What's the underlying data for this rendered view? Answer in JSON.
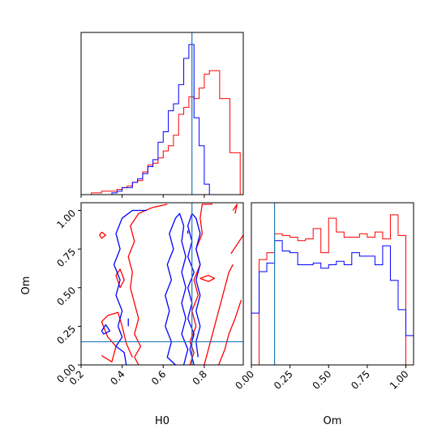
{
  "chart_data": {
    "type": "corner",
    "parameters": [
      "H0",
      "Om"
    ],
    "xlabel": "H0",
    "ylabel": "Om",
    "ranges": {
      "H0": [
        0.2,
        0.99
      ],
      "Om": [
        0.0,
        1.05
      ]
    },
    "truths": {
      "H0": 0.74,
      "Om": 0.15
    },
    "truth_color": "#1f77b4",
    "series_colors": [
      "#ff0000",
      "#0000ff"
    ],
    "ticks": {
      "H0": [
        "0.2",
        "0.4",
        "0.6",
        "0.8"
      ],
      "Om": [
        "0.00",
        "0.25",
        "0.50",
        "0.75",
        "1.00"
      ]
    },
    "hist_H0": {
      "bin_edges": [
        0.2,
        0.225,
        0.25,
        0.275,
        0.3,
        0.325,
        0.35,
        0.375,
        0.4,
        0.425,
        0.45,
        0.475,
        0.5,
        0.525,
        0.55,
        0.575,
        0.6,
        0.625,
        0.65,
        0.675,
        0.7,
        0.725,
        0.75,
        0.775,
        0.8,
        0.825,
        0.85,
        0.875,
        0.9,
        0.925,
        0.95,
        0.975,
        1.0
      ],
      "series": [
        {
          "values": [
            0,
            0,
            1,
            1,
            2,
            2,
            2,
            3,
            4,
            5,
            7,
            8,
            13,
            17,
            18,
            21,
            25,
            28,
            34,
            46,
            50,
            56,
            55,
            61,
            69,
            71,
            71,
            55,
            55,
            24,
            24,
            0
          ]
        },
        {
          "values": [
            0,
            0,
            0,
            0,
            0,
            0,
            1,
            2,
            4,
            4,
            7,
            9,
            12,
            16,
            20,
            30,
            36,
            48,
            52,
            63,
            78,
            86,
            44,
            28,
            6,
            0,
            0,
            0,
            0,
            0,
            0,
            0
          ]
        }
      ]
    },
    "hist_Om": {
      "bin_edges": [
        0.0,
        0.05,
        0.1,
        0.15,
        0.2,
        0.25,
        0.3,
        0.35,
        0.4,
        0.45,
        0.5,
        0.55,
        0.6,
        0.65,
        0.7,
        0.75,
        0.8,
        0.85,
        0.9,
        0.95,
        1.0,
        1.05
      ],
      "series": [
        {
          "values": [
            0,
            61,
            65,
            76,
            75,
            74,
            72,
            73,
            79,
            65,
            85,
            77,
            74,
            74,
            76,
            74,
            77,
            73,
            87,
            75,
            0
          ]
        },
        {
          "values": [
            30,
            54,
            59,
            72,
            66,
            65,
            58,
            58,
            59,
            56,
            58,
            60,
            58,
            65,
            63,
            63,
            58,
            69,
            49,
            32,
            17
          ]
        }
      ]
    },
    "contours": [
      {
        "name": "",
        "color": "#ff0000",
        "paths": [
          [
            [
              0.48,
              0.0
            ],
            [
              0.46,
              0.05
            ],
            [
              0.49,
              0.12
            ],
            [
              0.46,
              0.2
            ],
            [
              0.48,
              0.3
            ],
            [
              0.46,
              0.4
            ],
            [
              0.44,
              0.5
            ],
            [
              0.45,
              0.6
            ],
            [
              0.43,
              0.7
            ],
            [
              0.46,
              0.8
            ],
            [
              0.44,
              0.9
            ],
            [
              0.48,
              0.98
            ],
            [
              0.55,
              1.02
            ],
            [
              0.62,
              1.04
            ]
          ],
          [
            [
              0.3,
              0.06
            ],
            [
              0.35,
              0.02
            ],
            [
              0.37,
              0.12
            ],
            [
              0.33,
              0.18
            ],
            [
              0.3,
              0.28
            ],
            [
              0.33,
              0.32
            ],
            [
              0.38,
              0.34
            ],
            [
              0.4,
              0.25
            ],
            [
              0.42,
              0.14
            ],
            [
              0.45,
              0.05
            ]
          ],
          [
            [
              0.39,
              0.5
            ],
            [
              0.41,
              0.55
            ],
            [
              0.39,
              0.62
            ],
            [
              0.37,
              0.58
            ],
            [
              0.39,
              0.5
            ]
          ],
          [
            [
              0.3,
              0.86
            ],
            [
              0.32,
              0.84
            ],
            [
              0.3,
              0.82
            ],
            [
              0.29,
              0.84
            ],
            [
              0.3,
              0.86
            ]
          ],
          [
            [
              0.73,
              0.0
            ],
            [
              0.75,
              0.08
            ],
            [
              0.73,
              0.15
            ],
            [
              0.76,
              0.25
            ],
            [
              0.74,
              0.35
            ],
            [
              0.77,
              0.45
            ],
            [
              0.75,
              0.55
            ],
            [
              0.78,
              0.65
            ],
            [
              0.76,
              0.75
            ],
            [
              0.79,
              0.85
            ],
            [
              0.78,
              0.95
            ],
            [
              0.79,
              1.04
            ],
            [
              0.84,
              1.04
            ]
          ],
          [
            [
              0.8,
              0.0
            ],
            [
              0.82,
              0.1
            ],
            [
              0.84,
              0.2
            ],
            [
              0.86,
              0.3
            ],
            [
              0.88,
              0.4
            ],
            [
              0.9,
              0.5
            ],
            [
              0.92,
              0.6
            ],
            [
              0.94,
              0.65
            ]
          ],
          [
            [
              0.87,
              0.0
            ],
            [
              0.9,
              0.1
            ],
            [
              0.92,
              0.2
            ],
            [
              0.95,
              0.3
            ],
            [
              0.98,
              0.42
            ]
          ],
          [
            [
              0.78,
              0.56
            ],
            [
              0.82,
              0.58
            ],
            [
              0.85,
              0.56
            ],
            [
              0.82,
              0.54
            ],
            [
              0.78,
              0.56
            ]
          ],
          [
            [
              0.93,
              0.72
            ],
            [
              0.96,
              0.78
            ],
            [
              0.99,
              0.84
            ]
          ],
          [
            [
              0.94,
              1.0
            ],
            [
              0.96,
              1.04
            ],
            [
              0.95,
              0.98
            ]
          ]
        ]
      },
      {
        "name": "",
        "color": "#0000ff",
        "paths": [
          [
            [
              0.42,
              0.0
            ],
            [
              0.41,
              0.08
            ],
            [
              0.37,
              0.12
            ],
            [
              0.4,
              0.18
            ],
            [
              0.38,
              0.25
            ],
            [
              0.4,
              0.35
            ],
            [
              0.37,
              0.45
            ],
            [
              0.39,
              0.55
            ],
            [
              0.36,
              0.65
            ],
            [
              0.39,
              0.75
            ],
            [
              0.37,
              0.85
            ],
            [
              0.4,
              0.95
            ],
            [
              0.45,
              1.0
            ],
            [
              0.52,
              1.0
            ]
          ],
          [
            [
              0.3,
              0.22
            ],
            [
              0.32,
              0.26
            ],
            [
              0.34,
              0.22
            ],
            [
              0.31,
              0.2
            ],
            [
              0.3,
              0.22
            ]
          ],
          [
            [
              0.43,
              0.25
            ],
            [
              0.43,
              0.3
            ]
          ],
          [
            [
              0.66,
              0.0
            ],
            [
              0.62,
              0.05
            ],
            [
              0.64,
              0.15
            ],
            [
              0.61,
              0.25
            ],
            [
              0.63,
              0.35
            ],
            [
              0.61,
              0.45
            ],
            [
              0.64,
              0.55
            ],
            [
              0.62,
              0.65
            ],
            [
              0.65,
              0.75
            ],
            [
              0.63,
              0.85
            ],
            [
              0.66,
              0.95
            ],
            [
              0.68,
              0.98
            ],
            [
              0.7,
              0.9
            ],
            [
              0.69,
              0.8
            ],
            [
              0.71,
              0.7
            ],
            [
              0.69,
              0.6
            ],
            [
              0.71,
              0.5
            ],
            [
              0.69,
              0.4
            ],
            [
              0.71,
              0.3
            ],
            [
              0.69,
              0.2
            ],
            [
              0.72,
              0.1
            ],
            [
              0.7,
              0.0
            ]
          ],
          [
            [
              0.75,
              0.0
            ],
            [
              0.73,
              0.1
            ],
            [
              0.75,
              0.2
            ],
            [
              0.72,
              0.3
            ],
            [
              0.74,
              0.4
            ],
            [
              0.72,
              0.5
            ],
            [
              0.75,
              0.6
            ],
            [
              0.72,
              0.7
            ],
            [
              0.74,
              0.8
            ],
            [
              0.72,
              0.9
            ],
            [
              0.74,
              0.98
            ],
            [
              0.76,
              0.95
            ],
            [
              0.78,
              0.85
            ],
            [
              0.76,
              0.75
            ],
            [
              0.78,
              0.65
            ],
            [
              0.76,
              0.55
            ],
            [
              0.78,
              0.45
            ],
            [
              0.76,
              0.35
            ],
            [
              0.78,
              0.25
            ],
            [
              0.76,
              0.15
            ],
            [
              0.77,
              0.05
            ]
          ],
          [
            [
              0.72,
              0.85
            ],
            [
              0.72,
              0.87
            ]
          ]
        ]
      }
    ]
  }
}
